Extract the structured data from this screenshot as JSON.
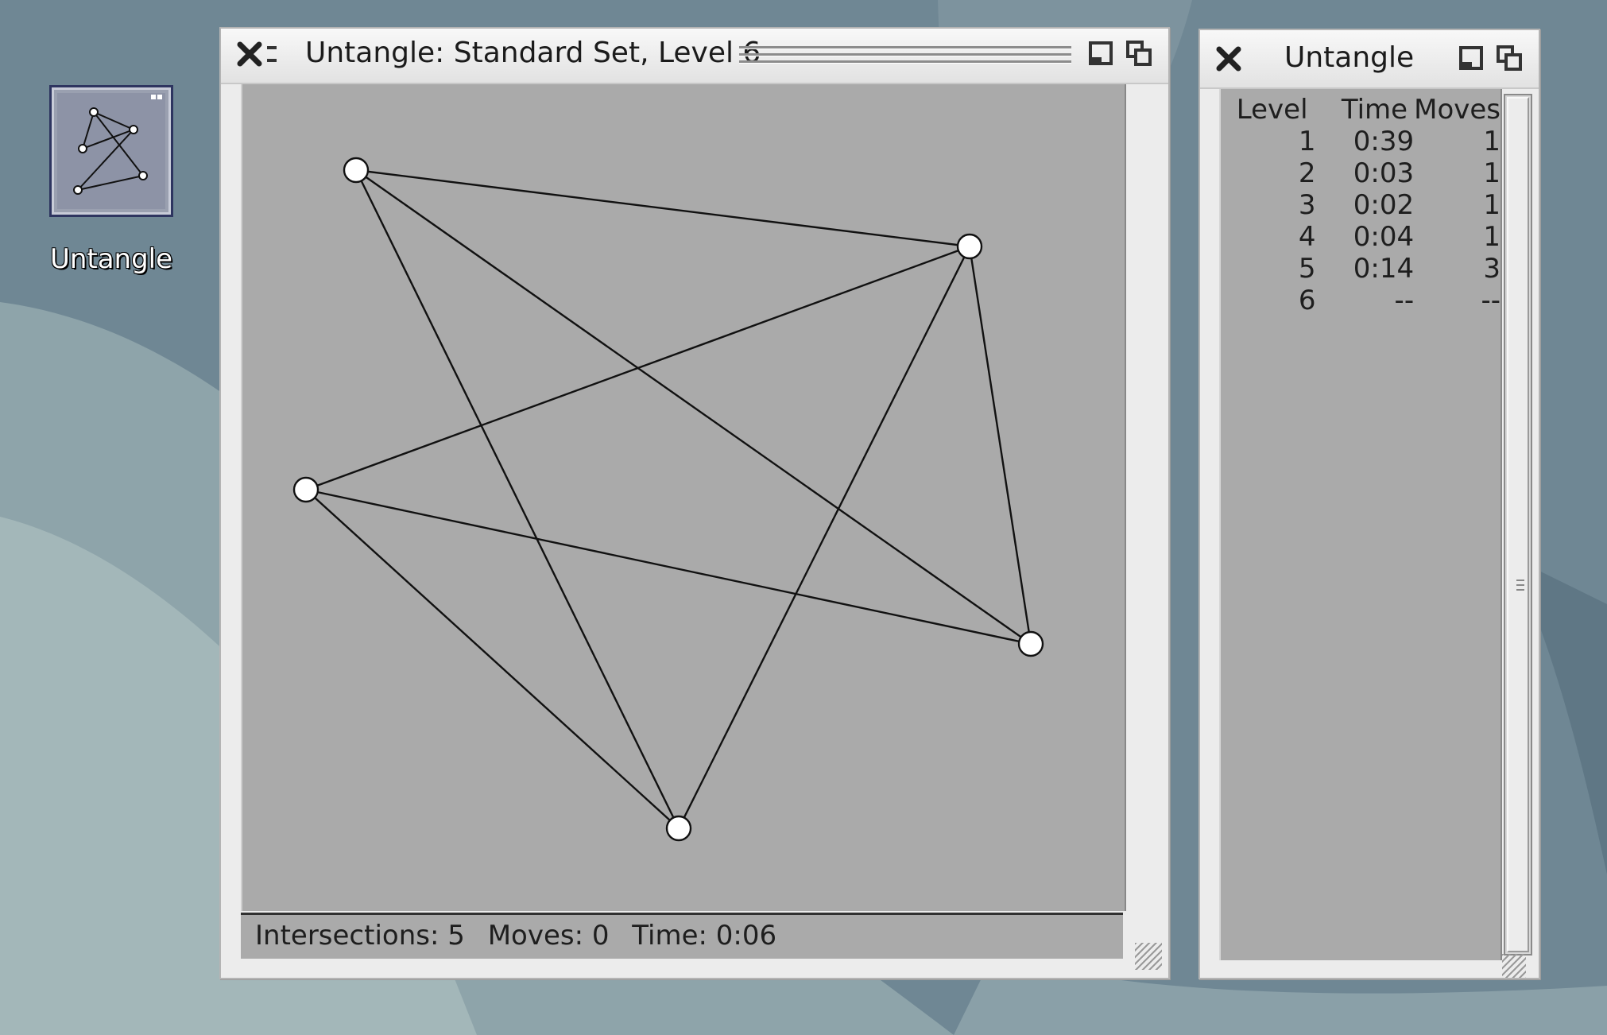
{
  "desktop": {
    "icon_label": "Untangle"
  },
  "game_window": {
    "title": "Untangle: Standard Set, Level 6",
    "status": {
      "intersections": "Intersections: 5",
      "moves": "Moves: 0",
      "time": "Time: 0:06"
    }
  },
  "score_window": {
    "title": "Untangle",
    "headers": {
      "level": "Level",
      "time": "Time",
      "moves": "Moves"
    },
    "rows": [
      {
        "level": "1",
        "time": "0:39",
        "moves": "1"
      },
      {
        "level": "2",
        "time": "0:03",
        "moves": "1"
      },
      {
        "level": "3",
        "time": "0:02",
        "moves": "1"
      },
      {
        "level": "4",
        "time": "0:04",
        "moves": "1"
      },
      {
        "level": "5",
        "time": "0:14",
        "moves": "3"
      },
      {
        "level": "6",
        "time": "--",
        "moves": "--"
      }
    ]
  },
  "icons": {
    "close": "close-icon",
    "shade": "shade-icon",
    "iconify": "iconify-icon",
    "maximize": "maximize-icon"
  },
  "colors": {
    "board": "#aaaaaa",
    "edge": "#111111",
    "vertex_fill": "#ffffff"
  }
}
